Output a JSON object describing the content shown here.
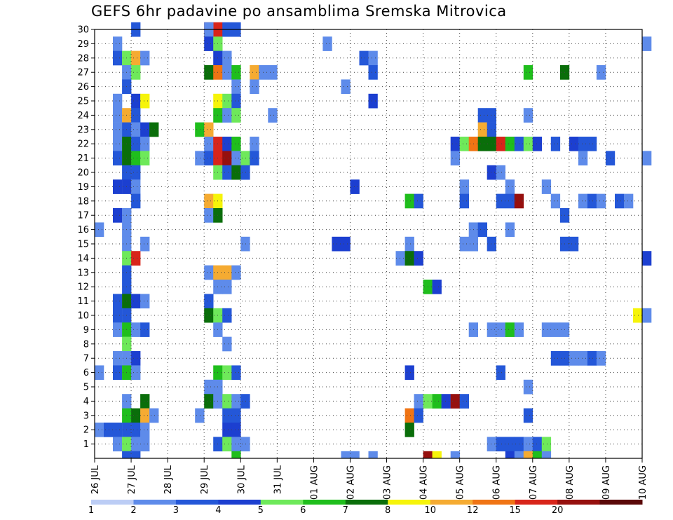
{
  "chart_data": {
    "type": "heatmap",
    "title": "GEFS 6hr padavine po ansamblima Sremska Mitrovica",
    "xlabel": "",
    "ylabel": "",
    "x_tick_labels": [
      "26 JUL",
      "27 JUL",
      "28 JUL",
      "29 JUL",
      "30 JUL",
      "31 JUL",
      "01 AUG",
      "02 AUG",
      "03 AUG",
      "04 AUG",
      "05 AUG",
      "06 AUG",
      "07 AUG",
      "08 AUG",
      "09 AUG",
      "10 AUG"
    ],
    "y_tick_labels": [
      "1",
      "2",
      "3",
      "4",
      "5",
      "6",
      "7",
      "8",
      "9",
      "10",
      "11",
      "12",
      "13",
      "14",
      "15",
      "16",
      "17",
      "18",
      "19",
      "20",
      "21",
      "22",
      "23",
      "24",
      "25",
      "26",
      "27",
      "28",
      "29",
      "30"
    ],
    "x_range": [
      "26 JUL",
      "10 AUG"
    ],
    "y_range": [
      0,
      30
    ],
    "time_step": "6hr",
    "grid": true,
    "colorbar": {
      "placement": "bottom",
      "labels": [
        "1",
        "2",
        "3",
        "4",
        "5",
        "6",
        "7",
        "8",
        "10",
        "12",
        "15",
        "20"
      ],
      "colors": [
        "#bccdf5",
        "#5e8bea",
        "#2457d8",
        "#1c3fd0",
        "#6ee95a",
        "#1fbe1c",
        "#0a6e0a",
        "#f6f40a",
        "#f5ab32",
        "#f07414",
        "#d8251a",
        "#96100e",
        "#5a0808"
      ]
    },
    "cells": [
      [
        30,
        27.0,
        2
      ],
      [
        30,
        29.0,
        11
      ],
      [
        30,
        29.25,
        10
      ],
      [
        30,
        29.5,
        2
      ],
      [
        30,
        29.75,
        2
      ],
      [
        30,
        29.0,
        1
      ],
      [
        29,
        26.5,
        1
      ],
      [
        29,
        29.0,
        3
      ],
      [
        29,
        29.25,
        4
      ],
      [
        29,
        32.25,
        1
      ],
      [
        29,
        41.0,
        1
      ],
      [
        28,
        26.5,
        2
      ],
      [
        28,
        26.75,
        4
      ],
      [
        28,
        27.0,
        8
      ],
      [
        28,
        27.25,
        1
      ],
      [
        28,
        29.25,
        3
      ],
      [
        28,
        29.5,
        1
      ],
      [
        28,
        33.25,
        2
      ],
      [
        28,
        33.5,
        1
      ],
      [
        27,
        26.75,
        1
      ],
      [
        27,
        27.0,
        4
      ],
      [
        27,
        29.0,
        6
      ],
      [
        27,
        29.25,
        9
      ],
      [
        27,
        29.5,
        1
      ],
      [
        27,
        29.75,
        5
      ],
      [
        27,
        30.25,
        8
      ],
      [
        27,
        30.5,
        1
      ],
      [
        27,
        30.75,
        1
      ],
      [
        27,
        33.5,
        2
      ],
      [
        27,
        37.75,
        5
      ],
      [
        27,
        38.75,
        6
      ],
      [
        27,
        39.75,
        1
      ],
      [
        26,
        26.75,
        2
      ],
      [
        26,
        29.75,
        1
      ],
      [
        26,
        30.25,
        1
      ],
      [
        26,
        32.75,
        1
      ],
      [
        25,
        26.5,
        1
      ],
      [
        25,
        27.0,
        3
      ],
      [
        25,
        27.25,
        7
      ],
      [
        25,
        29.25,
        7
      ],
      [
        25,
        29.5,
        4
      ],
      [
        25,
        29.75,
        2
      ],
      [
        25,
        33.5,
        3
      ],
      [
        24,
        26.5,
        1
      ],
      [
        24,
        26.75,
        8
      ],
      [
        24,
        27.0,
        2
      ],
      [
        24,
        29.25,
        5
      ],
      [
        24,
        29.5,
        1
      ],
      [
        24,
        29.75,
        4
      ],
      [
        24,
        30.75,
        1
      ],
      [
        24,
        36.5,
        2
      ],
      [
        24,
        36.75,
        2
      ],
      [
        24,
        37.75,
        1
      ],
      [
        23,
        26.5,
        1
      ],
      [
        23,
        26.75,
        2
      ],
      [
        23,
        27.0,
        1
      ],
      [
        23,
        27.25,
        3
      ],
      [
        23,
        27.5,
        6
      ],
      [
        23,
        28.75,
        5
      ],
      [
        23,
        29.0,
        8
      ],
      [
        23,
        36.5,
        8
      ],
      [
        23,
        36.75,
        2
      ],
      [
        22,
        26.5,
        1
      ],
      [
        22,
        26.75,
        6
      ],
      [
        22,
        27.0,
        2
      ],
      [
        22,
        27.25,
        1
      ],
      [
        22,
        29.0,
        1
      ],
      [
        22,
        29.25,
        10
      ],
      [
        22,
        29.5,
        3
      ],
      [
        22,
        29.75,
        5
      ],
      [
        22,
        30.25,
        1
      ],
      [
        22,
        35.75,
        3
      ],
      [
        22,
        36.0,
        4
      ],
      [
        22,
        36.25,
        9
      ],
      [
        22,
        36.5,
        6
      ],
      [
        22,
        36.75,
        6
      ],
      [
        22,
        37.0,
        10
      ],
      [
        22,
        37.25,
        5
      ],
      [
        22,
        37.5,
        2
      ],
      [
        22,
        37.75,
        4
      ],
      [
        22,
        38.0,
        3
      ],
      [
        22,
        38.5,
        2
      ],
      [
        22,
        39.0,
        3
      ],
      [
        22,
        39.25,
        2
      ],
      [
        22,
        39.5,
        2
      ],
      [
        21,
        26.5,
        2
      ],
      [
        21,
        26.75,
        6
      ],
      [
        21,
        27.0,
        5
      ],
      [
        21,
        27.25,
        4
      ],
      [
        21,
        28.75,
        1
      ],
      [
        21,
        29.0,
        2
      ],
      [
        21,
        29.25,
        10
      ],
      [
        21,
        29.5,
        11
      ],
      [
        21,
        29.75,
        1
      ],
      [
        21,
        30.0,
        4
      ],
      [
        21,
        30.25,
        2
      ],
      [
        21,
        35.75,
        1
      ],
      [
        21,
        39.25,
        1
      ],
      [
        21,
        40.0,
        2
      ],
      [
        21,
        41.0,
        1
      ],
      [
        20,
        26.75,
        2
      ],
      [
        20,
        27.0,
        2
      ],
      [
        20,
        29.25,
        4
      ],
      [
        20,
        29.5,
        2
      ],
      [
        20,
        29.75,
        6
      ],
      [
        20,
        30.0,
        2
      ],
      [
        20,
        36.75,
        3
      ],
      [
        20,
        37.0,
        1
      ],
      [
        19,
        26.5,
        3
      ],
      [
        19,
        26.75,
        3
      ],
      [
        19,
        27.0,
        1
      ],
      [
        19,
        33.0,
        3
      ],
      [
        19,
        36.0,
        1
      ],
      [
        19,
        37.25,
        1
      ],
      [
        19,
        38.25,
        1
      ],
      [
        18,
        27.0,
        2
      ],
      [
        18,
        29.0,
        8
      ],
      [
        18,
        29.25,
        7
      ],
      [
        18,
        34.5,
        5
      ],
      [
        18,
        34.75,
        2
      ],
      [
        18,
        36.0,
        2
      ],
      [
        18,
        37.0,
        2
      ],
      [
        18,
        37.25,
        2
      ],
      [
        18,
        37.5,
        11
      ],
      [
        18,
        38.5,
        1
      ],
      [
        18,
        39.25,
        1
      ],
      [
        18,
        39.5,
        2
      ],
      [
        18,
        39.75,
        1
      ],
      [
        18,
        40.25,
        2
      ],
      [
        18,
        40.5,
        1
      ],
      [
        17,
        26.5,
        3
      ],
      [
        17,
        26.75,
        1
      ],
      [
        17,
        29.0,
        1
      ],
      [
        17,
        29.25,
        6
      ],
      [
        17,
        38.75,
        2
      ],
      [
        16,
        26.0,
        1
      ],
      [
        16,
        26.75,
        1
      ],
      [
        16,
        36.25,
        1
      ],
      [
        16,
        36.5,
        2
      ],
      [
        16,
        37.25,
        1
      ],
      [
        15,
        26.75,
        1
      ],
      [
        15,
        27.25,
        1
      ],
      [
        15,
        30.0,
        1
      ],
      [
        15,
        32.5,
        3
      ],
      [
        15,
        32.75,
        3
      ],
      [
        15,
        34.5,
        1
      ],
      [
        15,
        36.0,
        1
      ],
      [
        15,
        36.25,
        1
      ],
      [
        15,
        36.75,
        2
      ],
      [
        15,
        38.75,
        2
      ],
      [
        15,
        39.0,
        2
      ],
      [
        14,
        26.75,
        4
      ],
      [
        14,
        27.0,
        10
      ],
      [
        14,
        34.25,
        1
      ],
      [
        14,
        34.5,
        6
      ],
      [
        14,
        34.75,
        3
      ],
      [
        14,
        41.0,
        3
      ],
      [
        13,
        26.75,
        2
      ],
      [
        13,
        29.0,
        1
      ],
      [
        13,
        29.25,
        8
      ],
      [
        13,
        29.5,
        8
      ],
      [
        13,
        29.75,
        1
      ],
      [
        12,
        26.75,
        2
      ],
      [
        12,
        29.25,
        1
      ],
      [
        12,
        29.5,
        1
      ],
      [
        12,
        35.0,
        5
      ],
      [
        12,
        35.25,
        3
      ],
      [
        11,
        26.5,
        2
      ],
      [
        11,
        26.75,
        6
      ],
      [
        11,
        27.0,
        3
      ],
      [
        11,
        27.25,
        1
      ],
      [
        11,
        29.0,
        2
      ],
      [
        10,
        26.5,
        2
      ],
      [
        10,
        26.75,
        2
      ],
      [
        10,
        29.0,
        6
      ],
      [
        10,
        29.25,
        4
      ],
      [
        10,
        29.5,
        2
      ],
      [
        10,
        40.75,
        7
      ],
      [
        10,
        41.0,
        1
      ],
      [
        9,
        26.5,
        1
      ],
      [
        9,
        26.75,
        5
      ],
      [
        9,
        27.0,
        1
      ],
      [
        9,
        27.25,
        2
      ],
      [
        9,
        29.25,
        1
      ],
      [
        9,
        36.25,
        1
      ],
      [
        9,
        36.75,
        1
      ],
      [
        9,
        37.0,
        1
      ],
      [
        9,
        37.25,
        5
      ],
      [
        9,
        37.5,
        1
      ],
      [
        9,
        38.25,
        1
      ],
      [
        9,
        38.5,
        1
      ],
      [
        9,
        38.75,
        1
      ],
      [
        8,
        26.75,
        4
      ],
      [
        8,
        29.5,
        1
      ],
      [
        7,
        26.5,
        1
      ],
      [
        7,
        26.75,
        1
      ],
      [
        7,
        27.0,
        3
      ],
      [
        7,
        38.5,
        2
      ],
      [
        7,
        38.75,
        2
      ],
      [
        7,
        39.0,
        1
      ],
      [
        7,
        39.25,
        1
      ],
      [
        7,
        39.5,
        2
      ],
      [
        7,
        39.75,
        1
      ],
      [
        6,
        26.0,
        1
      ],
      [
        6,
        26.5,
        2
      ],
      [
        6,
        26.75,
        5
      ],
      [
        6,
        27.0,
        1
      ],
      [
        6,
        29.25,
        5
      ],
      [
        6,
        29.5,
        4
      ],
      [
        6,
        29.75,
        2
      ],
      [
        6,
        34.5,
        3
      ],
      [
        6,
        37.0,
        2
      ],
      [
        5,
        29.0,
        1
      ],
      [
        5,
        29.25,
        1
      ],
      [
        5,
        37.75,
        1
      ],
      [
        4,
        26.75,
        1
      ],
      [
        4,
        27.25,
        6
      ],
      [
        4,
        29.0,
        6
      ],
      [
        4,
        29.25,
        1
      ],
      [
        4,
        29.5,
        4
      ],
      [
        4,
        29.75,
        1
      ],
      [
        4,
        30.0,
        2
      ],
      [
        4,
        34.75,
        1
      ],
      [
        4,
        35.0,
        4
      ],
      [
        4,
        35.25,
        5
      ],
      [
        4,
        35.5,
        3
      ],
      [
        4,
        35.75,
        11
      ],
      [
        4,
        36.0,
        2
      ],
      [
        3,
        26.75,
        5
      ],
      [
        3,
        27.0,
        6
      ],
      [
        3,
        27.25,
        8
      ],
      [
        3,
        27.5,
        1
      ],
      [
        3,
        28.75,
        1
      ],
      [
        3,
        29.5,
        2
      ],
      [
        3,
        29.75,
        2
      ],
      [
        3,
        34.5,
        9
      ],
      [
        3,
        34.75,
        2
      ],
      [
        3,
        37.75,
        2
      ],
      [
        2,
        26.0,
        1
      ],
      [
        2,
        26.25,
        2
      ],
      [
        2,
        26.5,
        2
      ],
      [
        2,
        26.75,
        2
      ],
      [
        2,
        27.0,
        2
      ],
      [
        2,
        27.25,
        1
      ],
      [
        2,
        29.5,
        3
      ],
      [
        2,
        29.75,
        3
      ],
      [
        2,
        34.5,
        6
      ],
      [
        1,
        26.5,
        1
      ],
      [
        1,
        26.75,
        4
      ],
      [
        1,
        27.0,
        1
      ],
      [
        1,
        27.25,
        1
      ],
      [
        1,
        29.25,
        2
      ],
      [
        1,
        29.5,
        4
      ],
      [
        1,
        29.75,
        1
      ],
      [
        1,
        30.0,
        1
      ],
      [
        1,
        36.75,
        1
      ],
      [
        1,
        37.0,
        2
      ],
      [
        1,
        37.25,
        2
      ],
      [
        1,
        37.5,
        2
      ],
      [
        1,
        37.75,
        1
      ],
      [
        1,
        38.0,
        2
      ],
      [
        1,
        38.25,
        4
      ],
      [
        0,
        26.75,
        2
      ],
      [
        0,
        27.0,
        2
      ],
      [
        0,
        29.75,
        5
      ],
      [
        0,
        32.75,
        1
      ],
      [
        0,
        33.0,
        1
      ],
      [
        0,
        33.5,
        1
      ],
      [
        0,
        35.0,
        11
      ],
      [
        0,
        35.25,
        7
      ],
      [
        0,
        35.75,
        1
      ],
      [
        0,
        37.25,
        3
      ],
      [
        0,
        37.5,
        1
      ],
      [
        0,
        37.75,
        8
      ],
      [
        0,
        38.0,
        5
      ],
      [
        0,
        38.25,
        1
      ]
    ]
  }
}
